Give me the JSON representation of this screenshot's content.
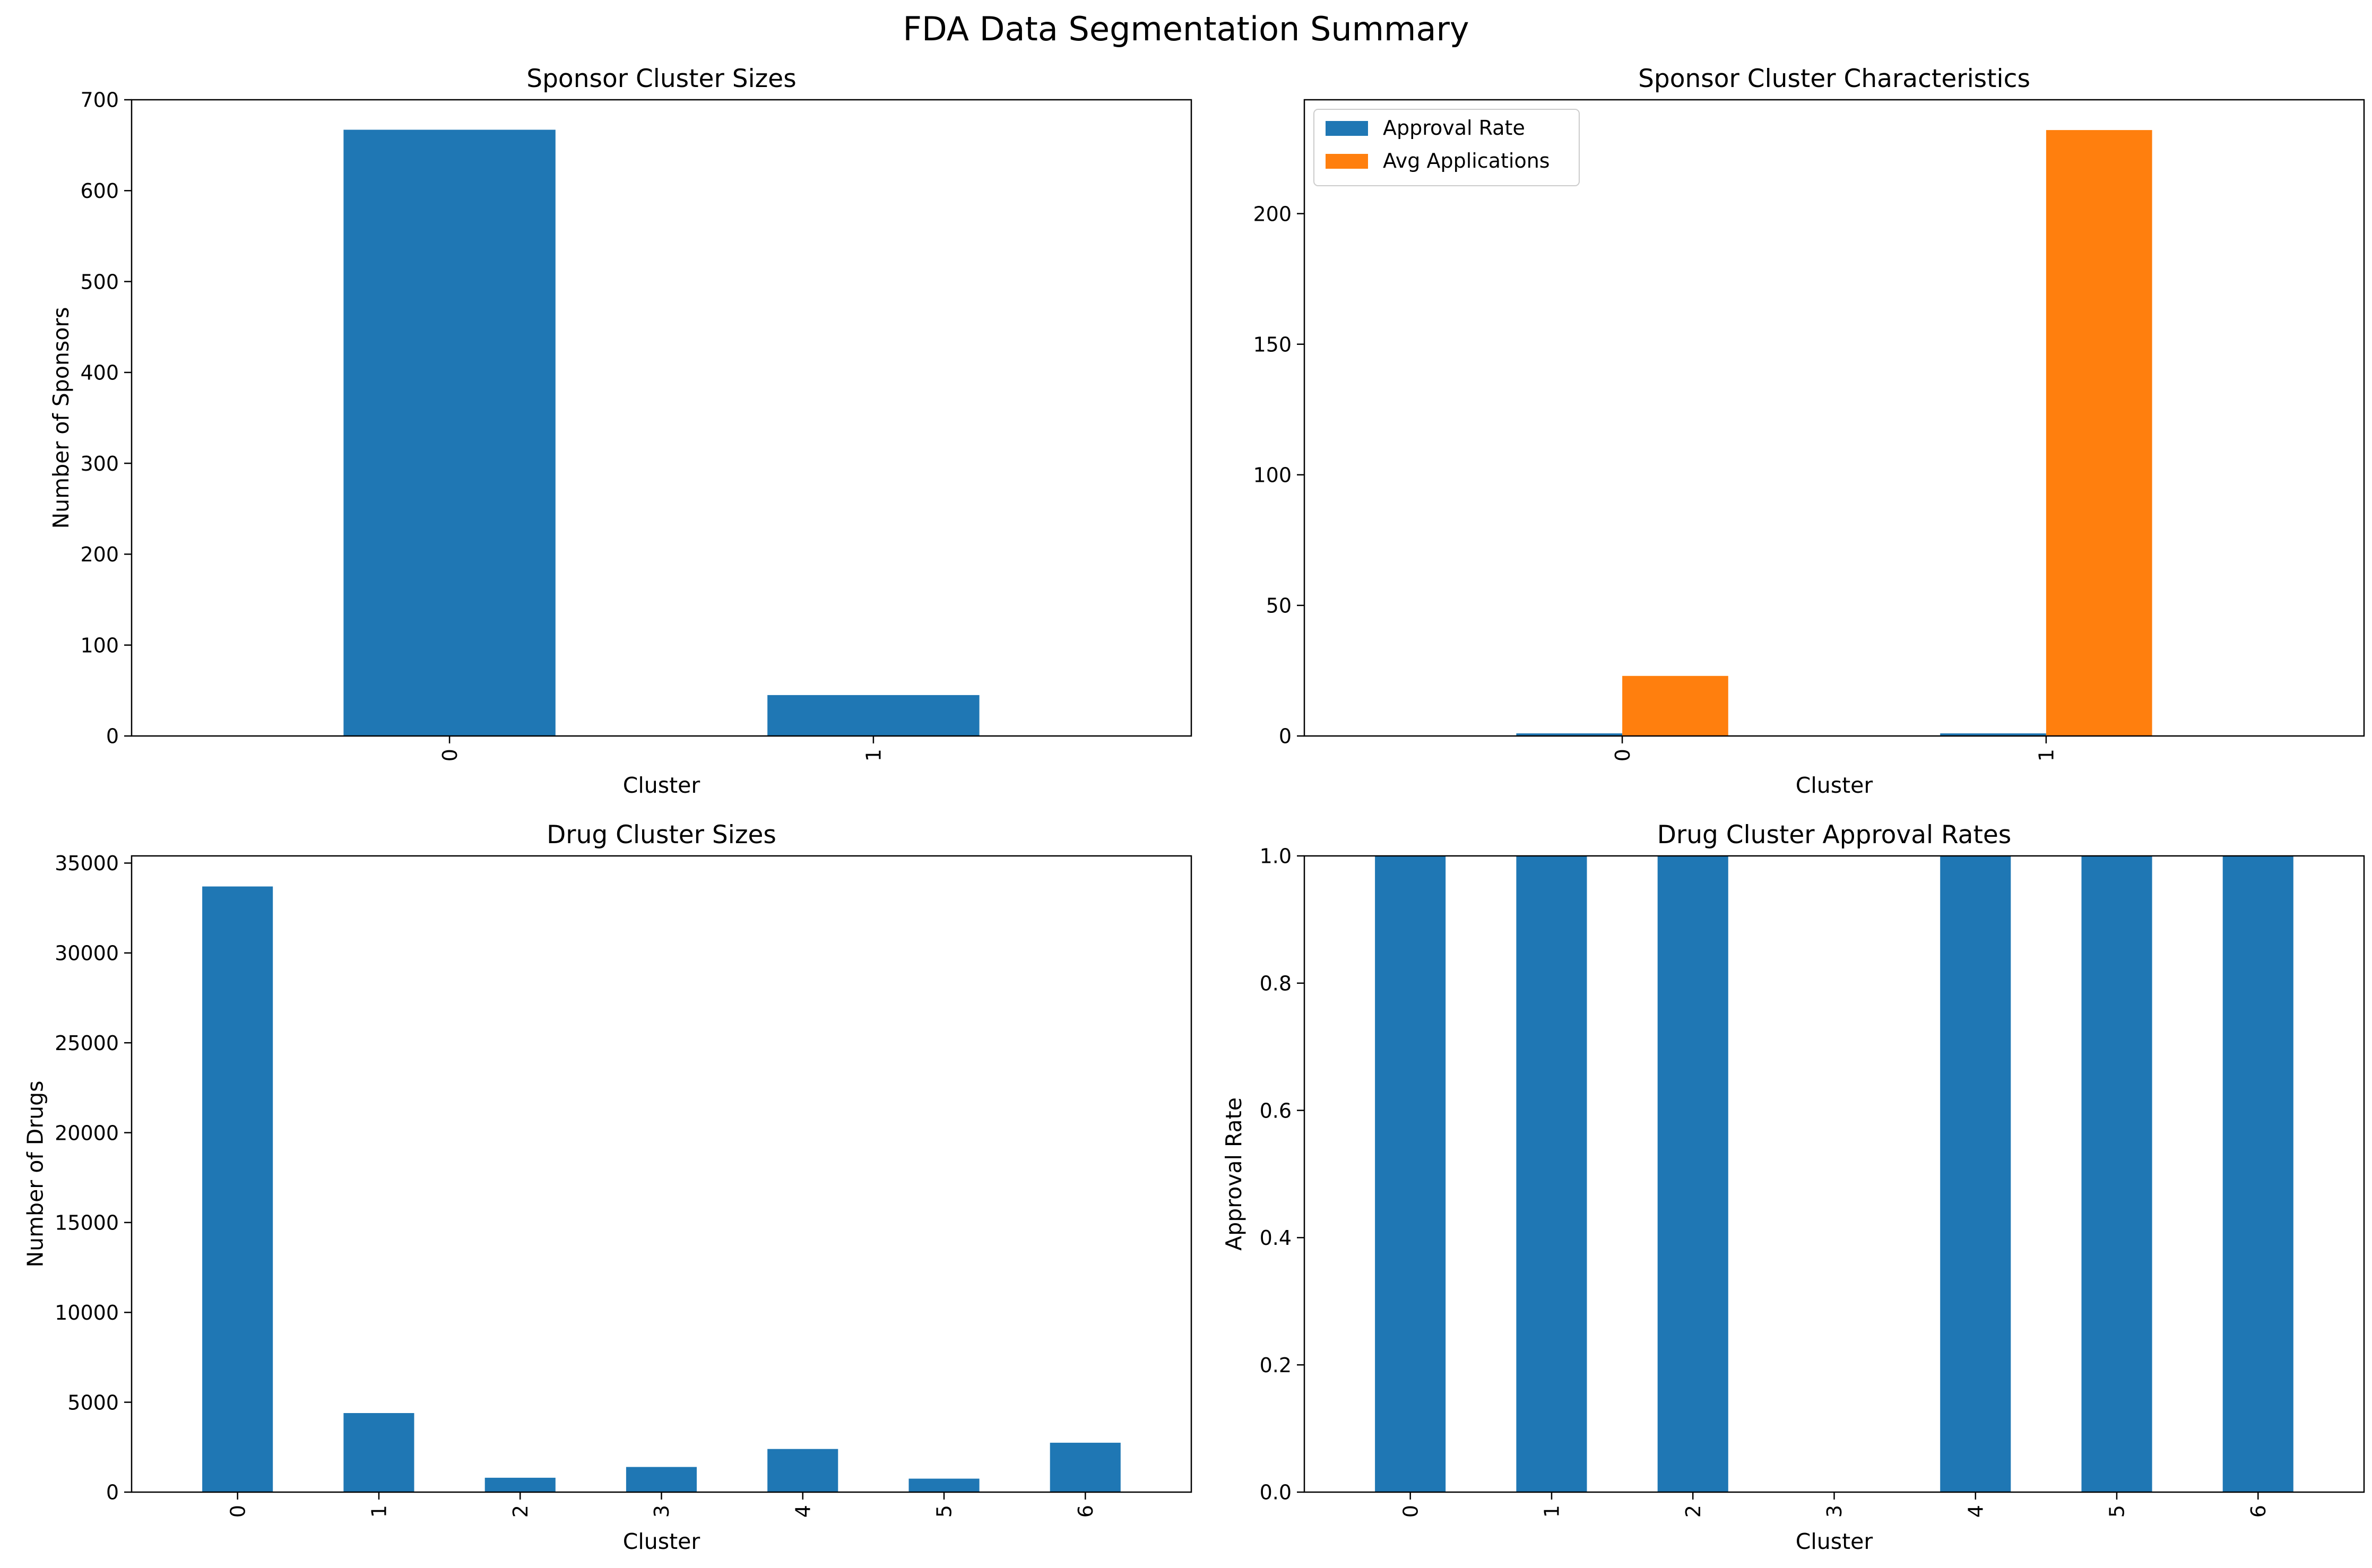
{
  "figure": {
    "title": "FDA Data Segmentation Summary"
  },
  "colors": {
    "blue": "#1f77b4",
    "orange": "#ff7f0e",
    "axis": "#000000",
    "background": "#ffffff"
  },
  "chart_data": [
    {
      "id": "sponsor-sizes",
      "type": "bar",
      "title": "Sponsor Cluster Sizes",
      "xlabel": "Cluster",
      "ylabel": "Number of Sponsors",
      "categories": [
        "0",
        "1"
      ],
      "series": [
        {
          "values": [
            667,
            45
          ],
          "color": "#1f77b4"
        }
      ],
      "ylim": [
        0,
        700
      ],
      "yticks": [
        0,
        100,
        200,
        300,
        400,
        500,
        600,
        700
      ],
      "ytick_labels": [
        "0",
        "100",
        "200",
        "300",
        "400",
        "500",
        "600",
        "700"
      ],
      "grid": false,
      "legend": false
    },
    {
      "id": "sponsor-characteristics",
      "type": "bar",
      "title": "Sponsor Cluster Characteristics",
      "xlabel": "Cluster",
      "ylabel": "",
      "categories": [
        "0",
        "1"
      ],
      "series": [
        {
          "name": "Approval Rate",
          "values": [
            1,
            1
          ],
          "color": "#1f77b4"
        },
        {
          "name": "Avg Applications",
          "values": [
            23,
            232
          ],
          "color": "#ff7f0e"
        }
      ],
      "ylim": [
        0,
        243.6
      ],
      "yticks": [
        0,
        50,
        100,
        150,
        200
      ],
      "ytick_labels": [
        "0",
        "50",
        "100",
        "150",
        "200"
      ],
      "grid": false,
      "legend": "top-left"
    },
    {
      "id": "drug-sizes",
      "type": "bar",
      "title": "Drug Cluster Sizes",
      "xlabel": "Cluster",
      "ylabel": "Number of Drugs",
      "categories": [
        "0",
        "1",
        "2",
        "3",
        "4",
        "5",
        "6"
      ],
      "series": [
        {
          "values": [
            33700,
            4400,
            800,
            1400,
            2400,
            750,
            2750
          ],
          "color": "#1f77b4"
        }
      ],
      "ylim": [
        0,
        35400
      ],
      "yticks": [
        0,
        5000,
        10000,
        15000,
        20000,
        25000,
        30000,
        35000
      ],
      "ytick_labels": [
        "0",
        "5000",
        "10000",
        "15000",
        "20000",
        "25000",
        "30000",
        "35000"
      ],
      "grid": false,
      "legend": false
    },
    {
      "id": "drug-approval",
      "type": "bar",
      "title": "Drug Cluster Approval Rates",
      "xlabel": "Cluster",
      "ylabel": "Approval Rate",
      "categories": [
        "0",
        "1",
        "2",
        "3",
        "4",
        "5",
        "6"
      ],
      "series": [
        {
          "values": [
            1,
            1,
            1,
            0,
            1,
            1,
            1
          ],
          "color": "#1f77b4"
        }
      ],
      "ylim": [
        0,
        1
      ],
      "yticks": [
        0,
        0.2,
        0.4,
        0.6,
        0.8,
        1.0
      ],
      "ytick_labels": [
        "0.0",
        "0.2",
        "0.4",
        "0.6",
        "0.8",
        "1.0"
      ],
      "grid": false,
      "legend": false
    }
  ]
}
